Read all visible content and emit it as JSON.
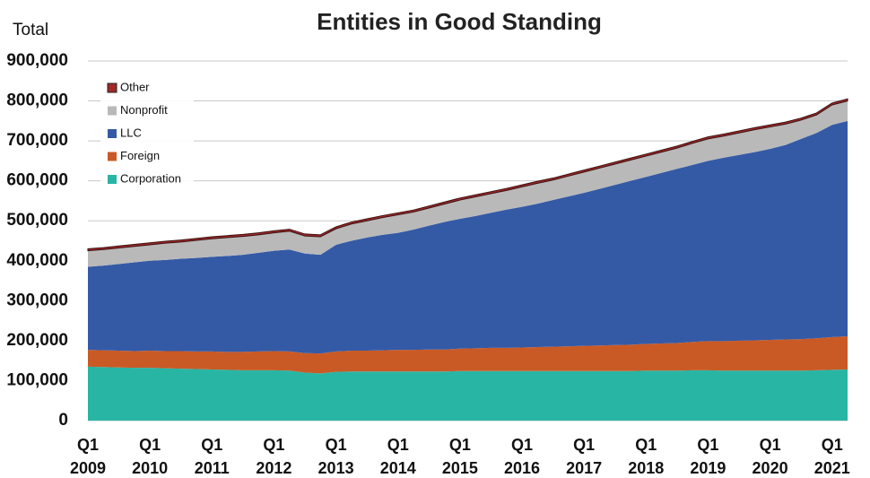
{
  "chart_data": {
    "type": "stacked_area",
    "title": "Entities in Good Standing",
    "ylabel": "Total",
    "categories": [
      "Q1 2009",
      null,
      null,
      null,
      "Q1 2010",
      null,
      null,
      null,
      "Q1 2011",
      null,
      null,
      null,
      "Q1 2012",
      null,
      null,
      null,
      "Q1 2013",
      null,
      null,
      null,
      "Q1 2014",
      null,
      null,
      null,
      "Q1 2015",
      null,
      null,
      null,
      "Q1 2016",
      null,
      null,
      null,
      "Q1 2017",
      null,
      null,
      null,
      "Q1 2018",
      null,
      null,
      null,
      "Q1 2019",
      null,
      null,
      null,
      "Q1 2020",
      null,
      null,
      null,
      "Q1 2021",
      null
    ],
    "series": [
      {
        "name": "Corporation",
        "color": "#29b5a4",
        "values": [
          135000,
          134000,
          133000,
          132000,
          132000,
          131000,
          130000,
          129000,
          128000,
          127000,
          126000,
          126000,
          126000,
          125000,
          120000,
          118000,
          122000,
          123000,
          123000,
          123000,
          123000,
          123000,
          123000,
          123000,
          124000,
          124000,
          124000,
          124000,
          124000,
          124000,
          124000,
          124000,
          124000,
          124000,
          124000,
          124000,
          125000,
          125000,
          125000,
          126000,
          126000,
          125000,
          125000,
          125000,
          125000,
          125000,
          125000,
          126000,
          127000,
          128000
        ]
      },
      {
        "name": "Foreign",
        "color": "#c95a26",
        "values": [
          42000,
          42000,
          42000,
          42000,
          43000,
          43000,
          44000,
          44000,
          45000,
          45000,
          46000,
          47000,
          48000,
          48000,
          49000,
          50000,
          51000,
          52000,
          52000,
          53000,
          54000,
          54000,
          55000,
          55000,
          56000,
          57000,
          58000,
          58000,
          59000,
          60000,
          61000,
          62000,
          63000,
          64000,
          65000,
          66000,
          67000,
          68000,
          69000,
          71000,
          73000,
          74000,
          75000,
          76000,
          77000,
          78000,
          79000,
          80000,
          82000,
          83000
        ]
      },
      {
        "name": "LLC",
        "color": "#345aa6",
        "values": [
          208000,
          212000,
          217000,
          222000,
          225000,
          228000,
          231000,
          234000,
          237000,
          240000,
          243000,
          247000,
          251000,
          255000,
          249000,
          247000,
          267000,
          275000,
          283000,
          289000,
          293000,
          301000,
          310000,
          319000,
          325000,
          331000,
          338000,
          346000,
          352000,
          359000,
          367000,
          375000,
          383000,
          392000,
          401000,
          410000,
          418000,
          427000,
          436000,
          443000,
          451000,
          459000,
          465000,
          471000,
          478000,
          487000,
          501000,
          514000,
          531000,
          539000
        ]
      },
      {
        "name": "Nonprofit",
        "color": "#b9b9b9",
        "values": [
          40000,
          40000,
          40000,
          40000,
          40000,
          42000,
          42000,
          44000,
          45000,
          46000,
          46000,
          45000,
          45000,
          46000,
          44000,
          45000,
          40000,
          42000,
          42000,
          43000,
          45000,
          44000,
          44000,
          45000,
          47000,
          48000,
          48000,
          48000,
          50000,
          51000,
          50000,
          51000,
          52000,
          52000,
          52000,
          52000,
          52000,
          52000,
          52000,
          54000,
          55000,
          54000,
          55000,
          56000,
          55000,
          52000,
          47000,
          45000,
          50000,
          50000
        ]
      },
      {
        "name": "Other",
        "color": "#a3292a",
        "values": [
          5000,
          5000,
          5000,
          5000,
          5000,
          5000,
          5000,
          5000,
          5000,
          5000,
          5000,
          5000,
          5000,
          5000,
          5000,
          5000,
          5000,
          5000,
          5000,
          5000,
          5000,
          5000,
          5000,
          5000,
          5000,
          5000,
          5000,
          5000,
          5000,
          5000,
          5000,
          5000,
          5000,
          5000,
          5000,
          5000,
          5000,
          5000,
          5000,
          5000,
          5000,
          5000,
          5000,
          5000,
          5000,
          5000,
          5000,
          5000,
          5000,
          5000
        ]
      }
    ],
    "ylim": [
      0,
      900000
    ],
    "yticks": [
      0,
      {
        "value": 100000,
        "label": "100,000"
      },
      {
        "value": 200000,
        "label": "200,000"
      },
      {
        "value": 300000,
        "label": "300,000"
      },
      {
        "value": 400000,
        "label": "400,000"
      },
      {
        "value": 500000,
        "label": "500,000"
      },
      {
        "value": 600000,
        "label": "600,000"
      },
      {
        "value": 700000,
        "label": "700,000"
      },
      {
        "value": 800000,
        "label": "800,000"
      },
      {
        "value": 900000,
        "label": "900,000"
      }
    ],
    "grid": true,
    "legend": "upper left"
  }
}
